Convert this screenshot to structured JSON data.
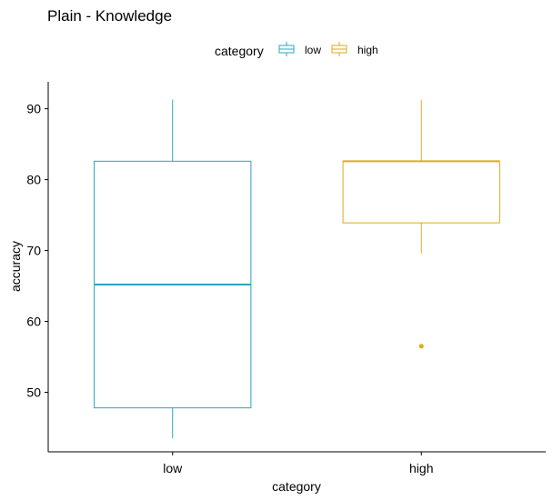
{
  "chart_data": {
    "type": "boxplot",
    "title": "Plain - Knowledge",
    "xlabel": "category",
    "ylabel": "accuracy",
    "categories": [
      "low",
      "high"
    ],
    "ylim": [
      41.6,
      93.8
    ],
    "yticks": [
      50,
      60,
      70,
      80,
      90
    ],
    "legend": {
      "title": "category",
      "position": "top",
      "entries": [
        {
          "label": "low",
          "color": "#26A8B8"
        },
        {
          "label": "high",
          "color": "#DDAA1A"
        }
      ]
    },
    "series": [
      {
        "category": "low",
        "color": "#26A8B8",
        "whisker_low": 43.5,
        "q1": 47.8,
        "median": 65.2,
        "q3": 82.6,
        "whisker_high": 91.3,
        "outliers": []
      },
      {
        "category": "high",
        "color": "#DDAA1A",
        "whisker_low": 69.6,
        "q1": 73.9,
        "median": 82.6,
        "q3": 82.6,
        "whisker_high": 91.3,
        "outliers": [
          56.5
        ]
      }
    ],
    "grid": false
  }
}
